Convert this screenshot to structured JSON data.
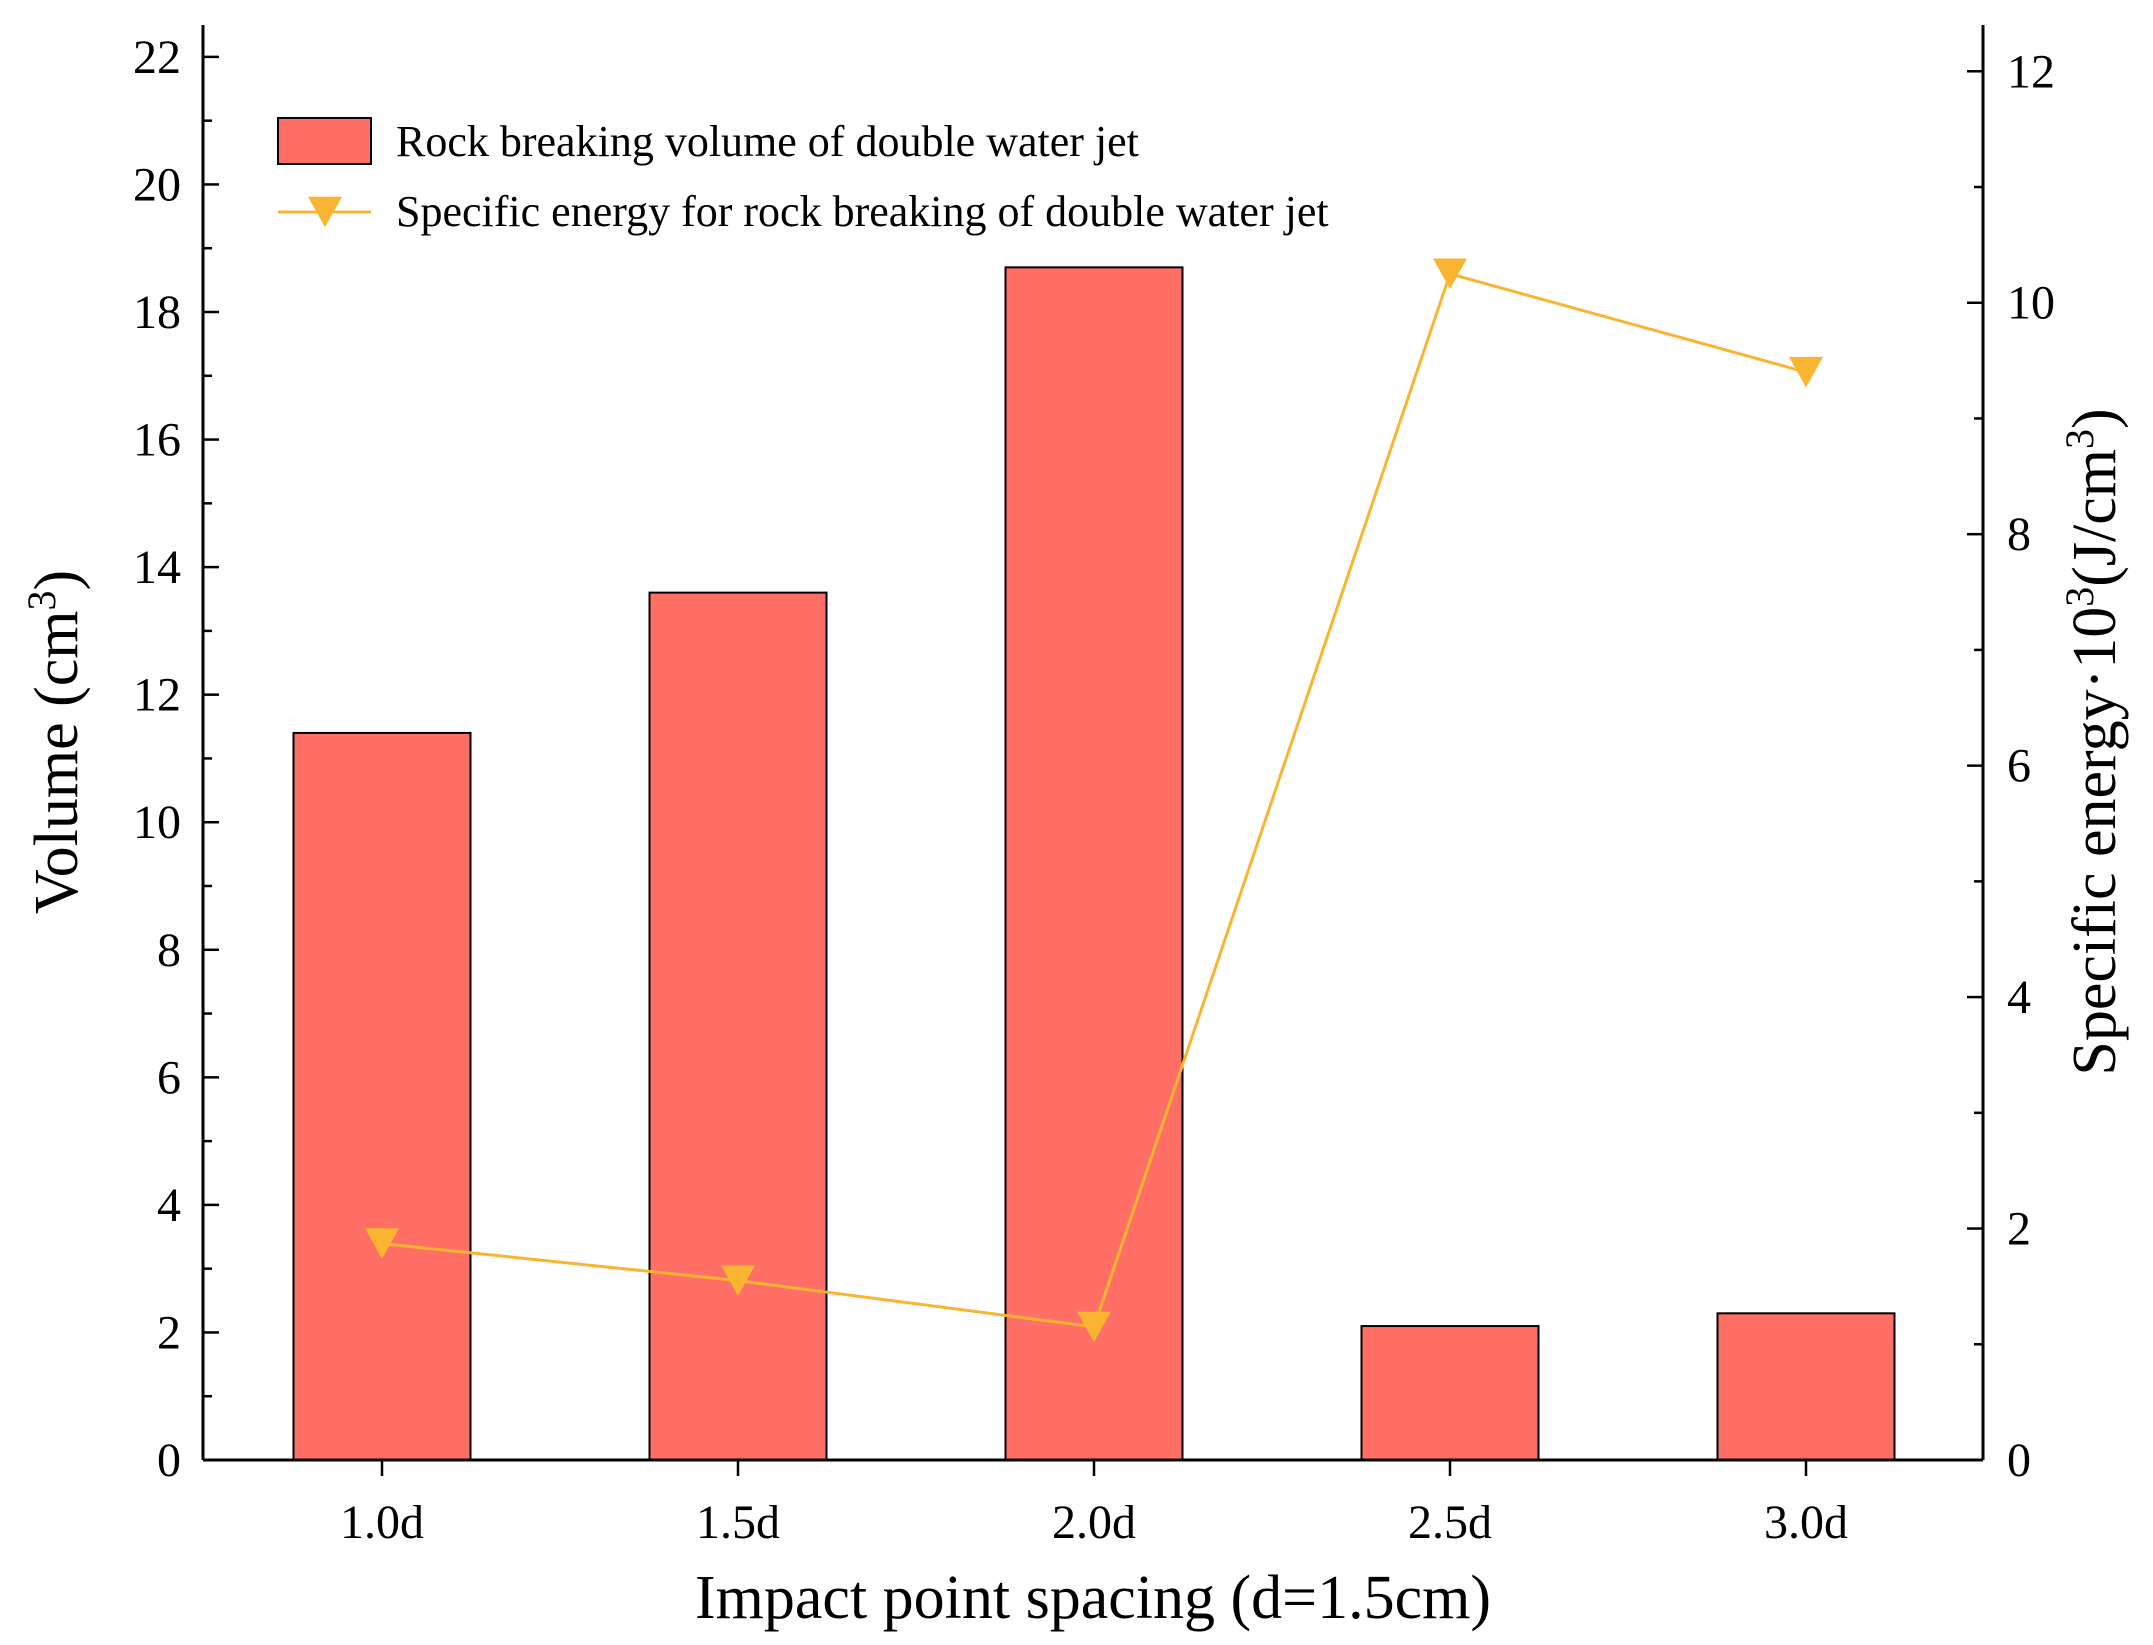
{
  "chart_data": {
    "type": "bar+line",
    "categories": [
      "1.0d",
      "1.5d",
      "2.0d",
      "2.5d",
      "3.0d"
    ],
    "series": [
      {
        "name": "Rock breaking volume of double water jet",
        "type": "bar",
        "axis": "left",
        "values": [
          11.4,
          13.6,
          18.7,
          2.1,
          2.3
        ]
      },
      {
        "name": "Specific energy for rock breaking of double water jet",
        "type": "line",
        "axis": "right",
        "marker": "triangle-down",
        "values": [
          1.87,
          1.55,
          1.15,
          10.25,
          9.4
        ]
      }
    ],
    "xlabel": "Impact point spacing (d=1.5cm)",
    "ylabel": {
      "main": "Volume (cm",
      "sup": "3",
      "end": ")"
    },
    "y2label": {
      "main": "Specific energy·10",
      "sup1": "3",
      "mid": "(J/cm",
      "sup2": "3",
      "end": ")"
    },
    "ylim": [
      0,
      22.5
    ],
    "y2lim": [
      0,
      12.4
    ],
    "yticks": [
      0,
      2,
      4,
      6,
      8,
      10,
      12,
      14,
      16,
      18,
      20,
      22
    ],
    "y2ticks": [
      0,
      2,
      4,
      6,
      8,
      10,
      12
    ],
    "legend_position": "top-left",
    "colors": {
      "bar_fill": "#ff6f65",
      "bar_stroke": "#000000",
      "line": "#f9b531",
      "marker": "#f9b531"
    }
  }
}
